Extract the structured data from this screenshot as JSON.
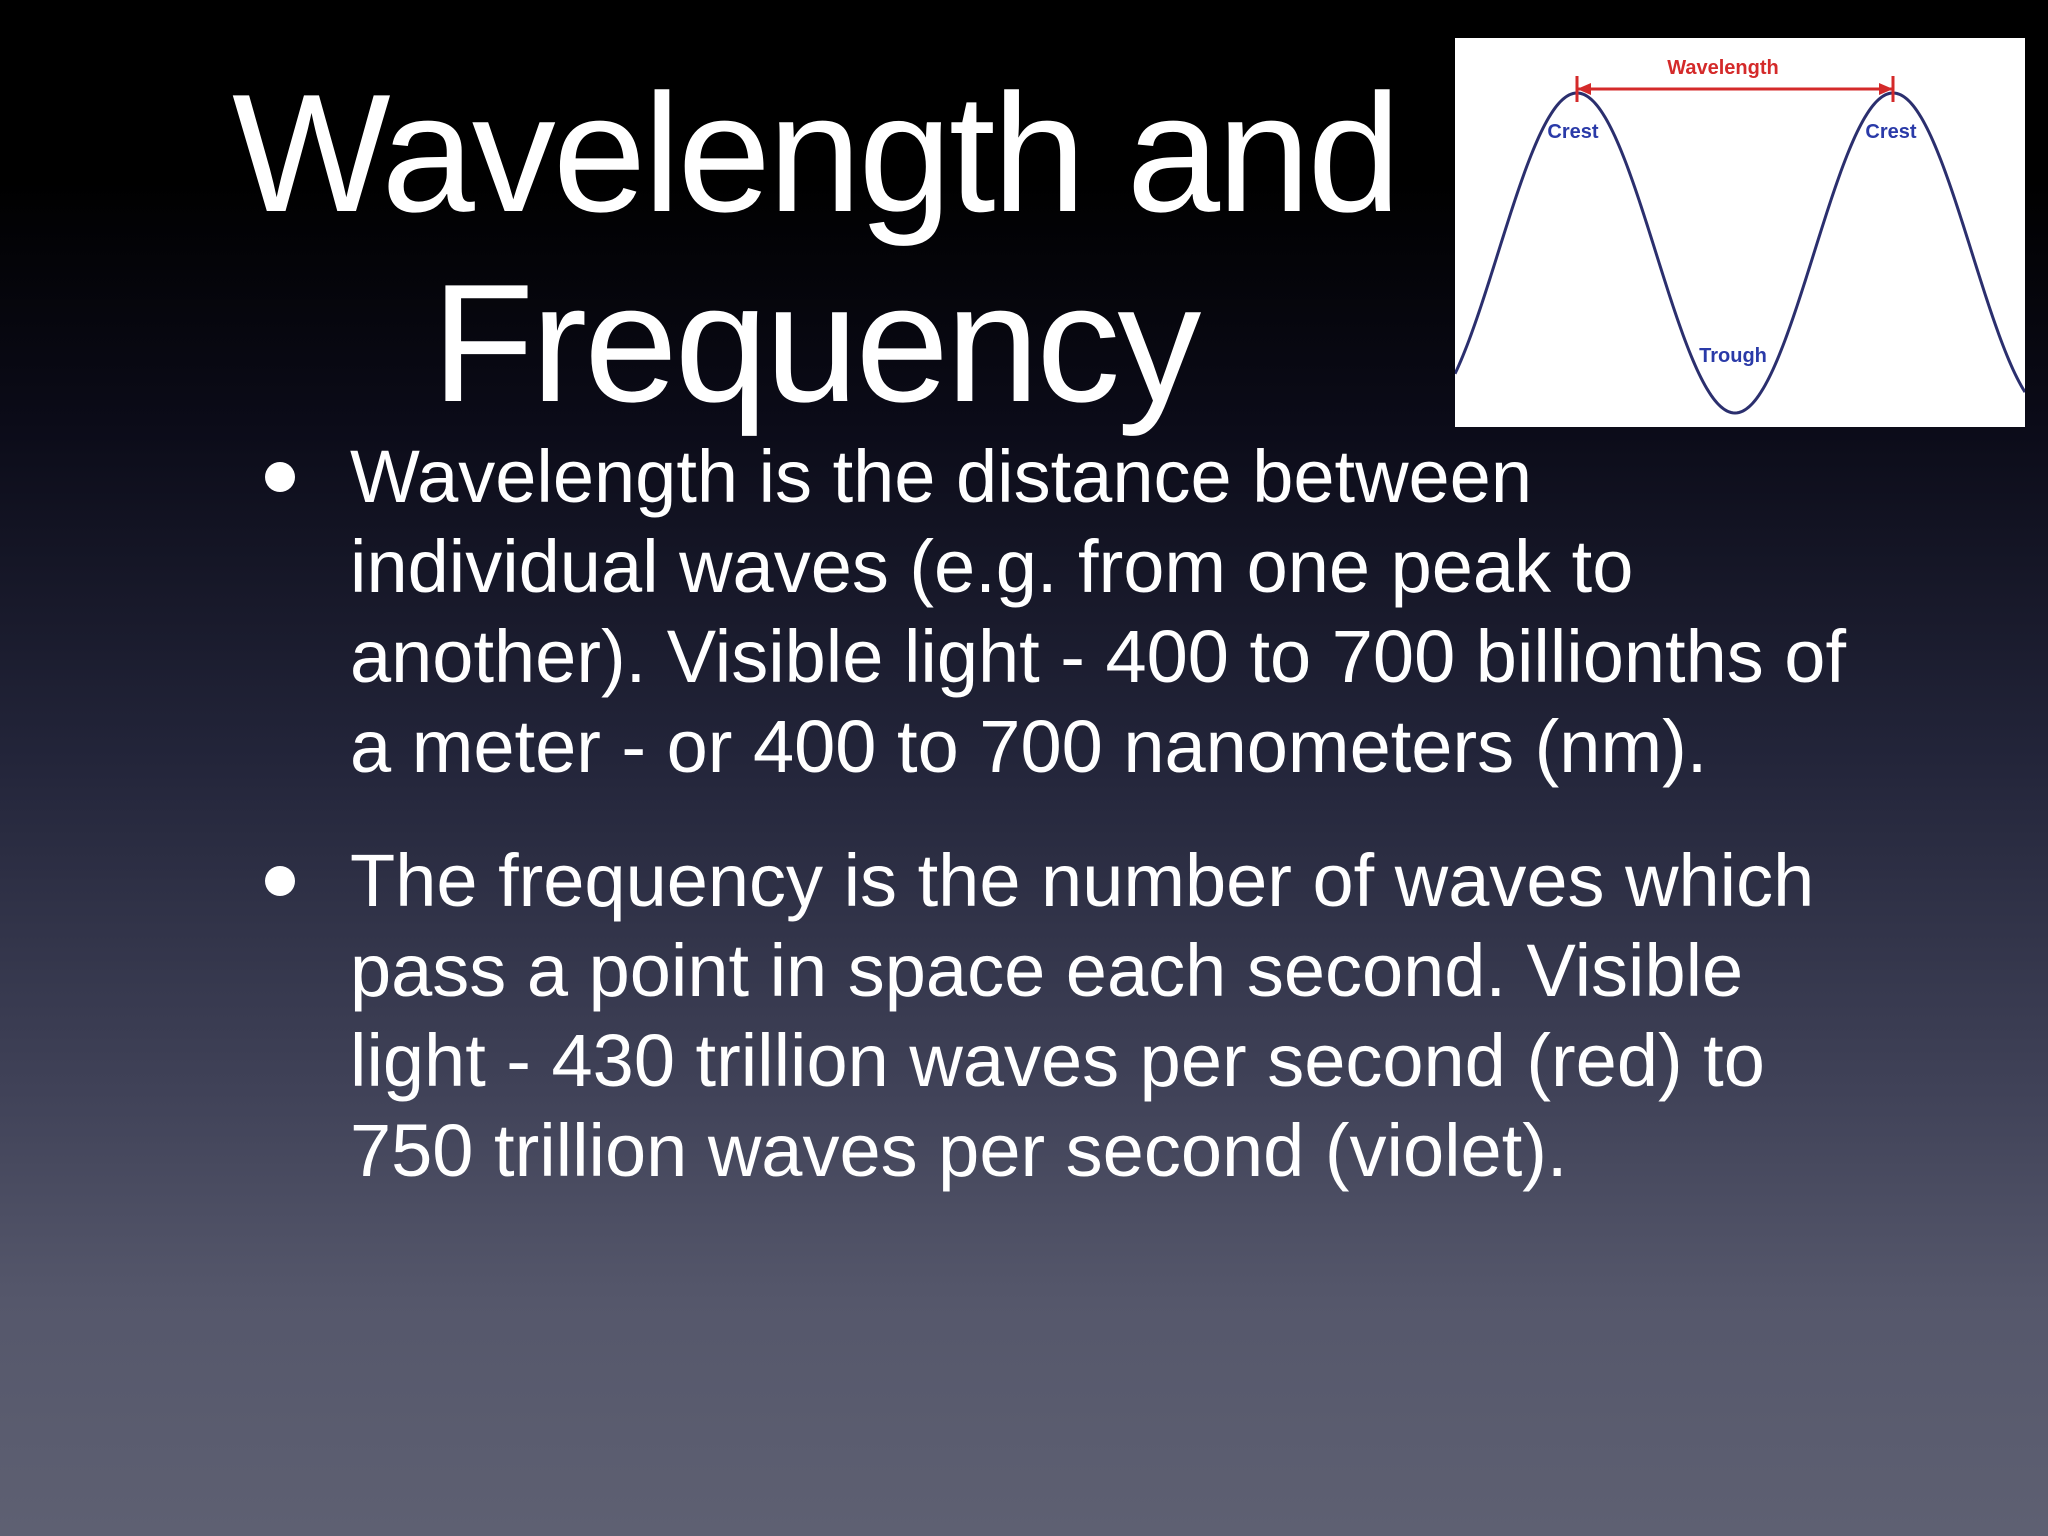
{
  "slide": {
    "title_line1": "Wavelength and",
    "title_line2": "Frequency"
  },
  "diagram": {
    "wavelength_label": "Wavelength",
    "crest_left_label": "Crest",
    "crest_right_label": "Crest",
    "trough_label": "Trough",
    "wave_color": "#2b2f6e",
    "marker_color": "#d42a2a",
    "label_color": "#2a3aa8"
  },
  "bullets": [
    {
      "text": "Wavelength is the distance between individual waves (e.g. from one peak to another). Visible light - 400 to 700 billionths of a meter - or 400 to 700 nanometers (nm)."
    },
    {
      "text": " The frequency is the number of waves which pass a point in space each second. Visible light - 430 trillion waves per second (red) to 750 trillion waves per second (violet)."
    }
  ]
}
